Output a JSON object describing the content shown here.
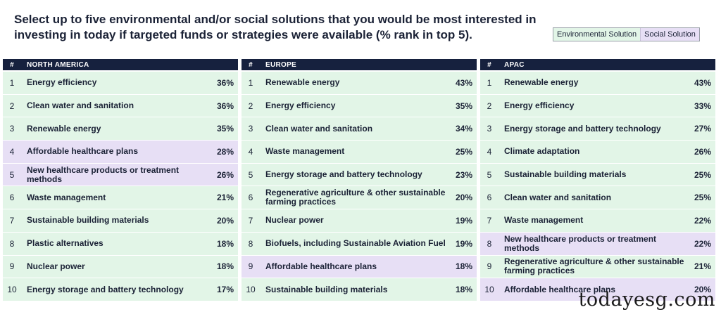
{
  "header": {
    "title": "Select up to five environmental and/or social solutions that you would be most interested in investing in today if targeted funds or strategies were available (% rank in top 5)."
  },
  "legend": {
    "environmental": "Environmental Solution",
    "social": "Social Solution"
  },
  "colors": {
    "environmental": "#e2f5e7",
    "social": "#e7dff5",
    "header_bg": "#16213e"
  },
  "chart_data": [
    {
      "type": "table",
      "region": "NORTH AMERICA",
      "rank_header": "#",
      "rows": [
        {
          "rank": "1",
          "solution": "Energy efficiency",
          "value": "36%",
          "category": "env"
        },
        {
          "rank": "2",
          "solution": "Clean water and sanitation",
          "value": "36%",
          "category": "env"
        },
        {
          "rank": "3",
          "solution": "Renewable energy",
          "value": "35%",
          "category": "env"
        },
        {
          "rank": "4",
          "solution": "Affordable healthcare plans",
          "value": "28%",
          "category": "soc"
        },
        {
          "rank": "5",
          "solution": "New healthcare products or treatment methods",
          "value": "26%",
          "category": "soc"
        },
        {
          "rank": "6",
          "solution": "Waste management",
          "value": "21%",
          "category": "env"
        },
        {
          "rank": "7",
          "solution": "Sustainable building materials",
          "value": "20%",
          "category": "env"
        },
        {
          "rank": "8",
          "solution": "Plastic alternatives",
          "value": "18%",
          "category": "env"
        },
        {
          "rank": "9",
          "solution": "Nuclear power",
          "value": "18%",
          "category": "env"
        },
        {
          "rank": "10",
          "solution": "Energy storage and battery technology",
          "value": "17%",
          "category": "env"
        }
      ]
    },
    {
      "type": "table",
      "region": "EUROPE",
      "rank_header": "#",
      "rows": [
        {
          "rank": "1",
          "solution": "Renewable energy",
          "value": "43%",
          "category": "env"
        },
        {
          "rank": "2",
          "solution": "Energy efficiency",
          "value": "35%",
          "category": "env"
        },
        {
          "rank": "3",
          "solution": "Clean water and sanitation",
          "value": "34%",
          "category": "env"
        },
        {
          "rank": "4",
          "solution": "Waste management",
          "value": "25%",
          "category": "env"
        },
        {
          "rank": "5",
          "solution": "Energy storage and battery technology",
          "value": "23%",
          "category": "env"
        },
        {
          "rank": "6",
          "solution": "Regenerative agriculture & other sustainable farming practices",
          "value": "20%",
          "category": "env"
        },
        {
          "rank": "7",
          "solution": "Nuclear power",
          "value": "19%",
          "category": "env"
        },
        {
          "rank": "8",
          "solution": "Biofuels, including Sustainable Aviation Fuel",
          "value": "19%",
          "category": "env"
        },
        {
          "rank": "9",
          "solution": "Affordable healthcare plans",
          "value": "18%",
          "category": "soc"
        },
        {
          "rank": "10",
          "solution": "Sustainable building materials",
          "value": "18%",
          "category": "env"
        }
      ]
    },
    {
      "type": "table",
      "region": "APAC",
      "rank_header": "#",
      "rows": [
        {
          "rank": "1",
          "solution": "Renewable energy",
          "value": "43%",
          "category": "env"
        },
        {
          "rank": "2",
          "solution": "Energy efficiency",
          "value": "33%",
          "category": "env"
        },
        {
          "rank": "3",
          "solution": "Energy storage and battery technology",
          "value": "27%",
          "category": "env"
        },
        {
          "rank": "4",
          "solution": "Climate adaptation",
          "value": "26%",
          "category": "env"
        },
        {
          "rank": "5",
          "solution": "Sustainable building materials",
          "value": "25%",
          "category": "env"
        },
        {
          "rank": "6",
          "solution": "Clean water and sanitation",
          "value": "25%",
          "category": "env"
        },
        {
          "rank": "7",
          "solution": "Waste management",
          "value": "22%",
          "category": "env"
        },
        {
          "rank": "8",
          "solution": "New healthcare products or treatment methods",
          "value": "22%",
          "category": "soc"
        },
        {
          "rank": "9",
          "solution": "Regenerative agriculture & other sustainable farming practices",
          "value": "21%",
          "category": "env"
        },
        {
          "rank": "10",
          "solution": "Affordable healthcare plans",
          "value": "20%",
          "category": "soc"
        }
      ]
    }
  ],
  "watermark": "todayesg.com"
}
